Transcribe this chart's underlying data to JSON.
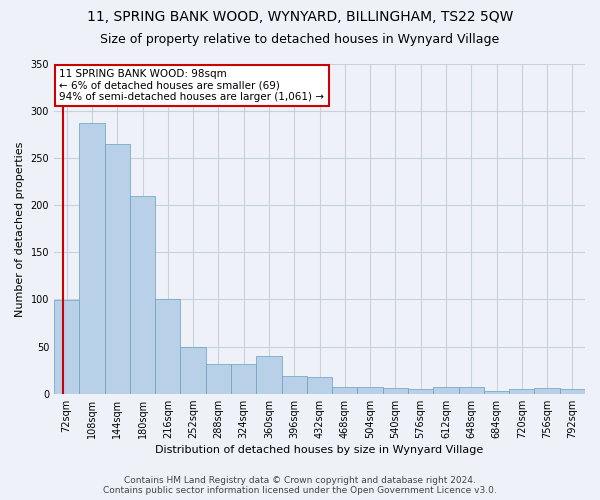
{
  "title": "11, SPRING BANK WOOD, WYNYARD, BILLINGHAM, TS22 5QW",
  "subtitle": "Size of property relative to detached houses in Wynyard Village",
  "xlabel": "Distribution of detached houses by size in Wynyard Village",
  "ylabel": "Number of detached properties",
  "bar_color": "#b8d0e8",
  "bar_edge_color": "#6a9fc0",
  "categories": [
    "72sqm",
    "108sqm",
    "144sqm",
    "180sqm",
    "216sqm",
    "252sqm",
    "288sqm",
    "324sqm",
    "360sqm",
    "396sqm",
    "432sqm",
    "468sqm",
    "504sqm",
    "540sqm",
    "576sqm",
    "612sqm",
    "648sqm",
    "684sqm",
    "720sqm",
    "756sqm",
    "792sqm"
  ],
  "values": [
    99,
    287,
    265,
    210,
    101,
    50,
    31,
    31,
    40,
    19,
    18,
    7,
    7,
    6,
    5,
    7,
    7,
    3,
    5,
    6,
    5
  ],
  "ylim": [
    0,
    350
  ],
  "yticks": [
    0,
    50,
    100,
    150,
    200,
    250,
    300,
    350
  ],
  "annotation_text": "11 SPRING BANK WOOD: 98sqm\n← 6% of detached houses are smaller (69)\n94% of semi-detached houses are larger (1,061) →",
  "annotation_box_color": "#ffffff",
  "annotation_border_color": "#cc0000",
  "vline_color": "#cc0000",
  "vline_x": -0.15,
  "footer_line1": "Contains HM Land Registry data © Crown copyright and database right 2024.",
  "footer_line2": "Contains public sector information licensed under the Open Government Licence v3.0.",
  "background_color": "#eef2f8",
  "grid_color": "#c8d0dc",
  "title_fontsize": 10,
  "subtitle_fontsize": 9,
  "ylabel_fontsize": 8,
  "xlabel_fontsize": 8,
  "tick_fontsize": 7,
  "footer_fontsize": 6.5,
  "annot_fontsize": 7.5
}
